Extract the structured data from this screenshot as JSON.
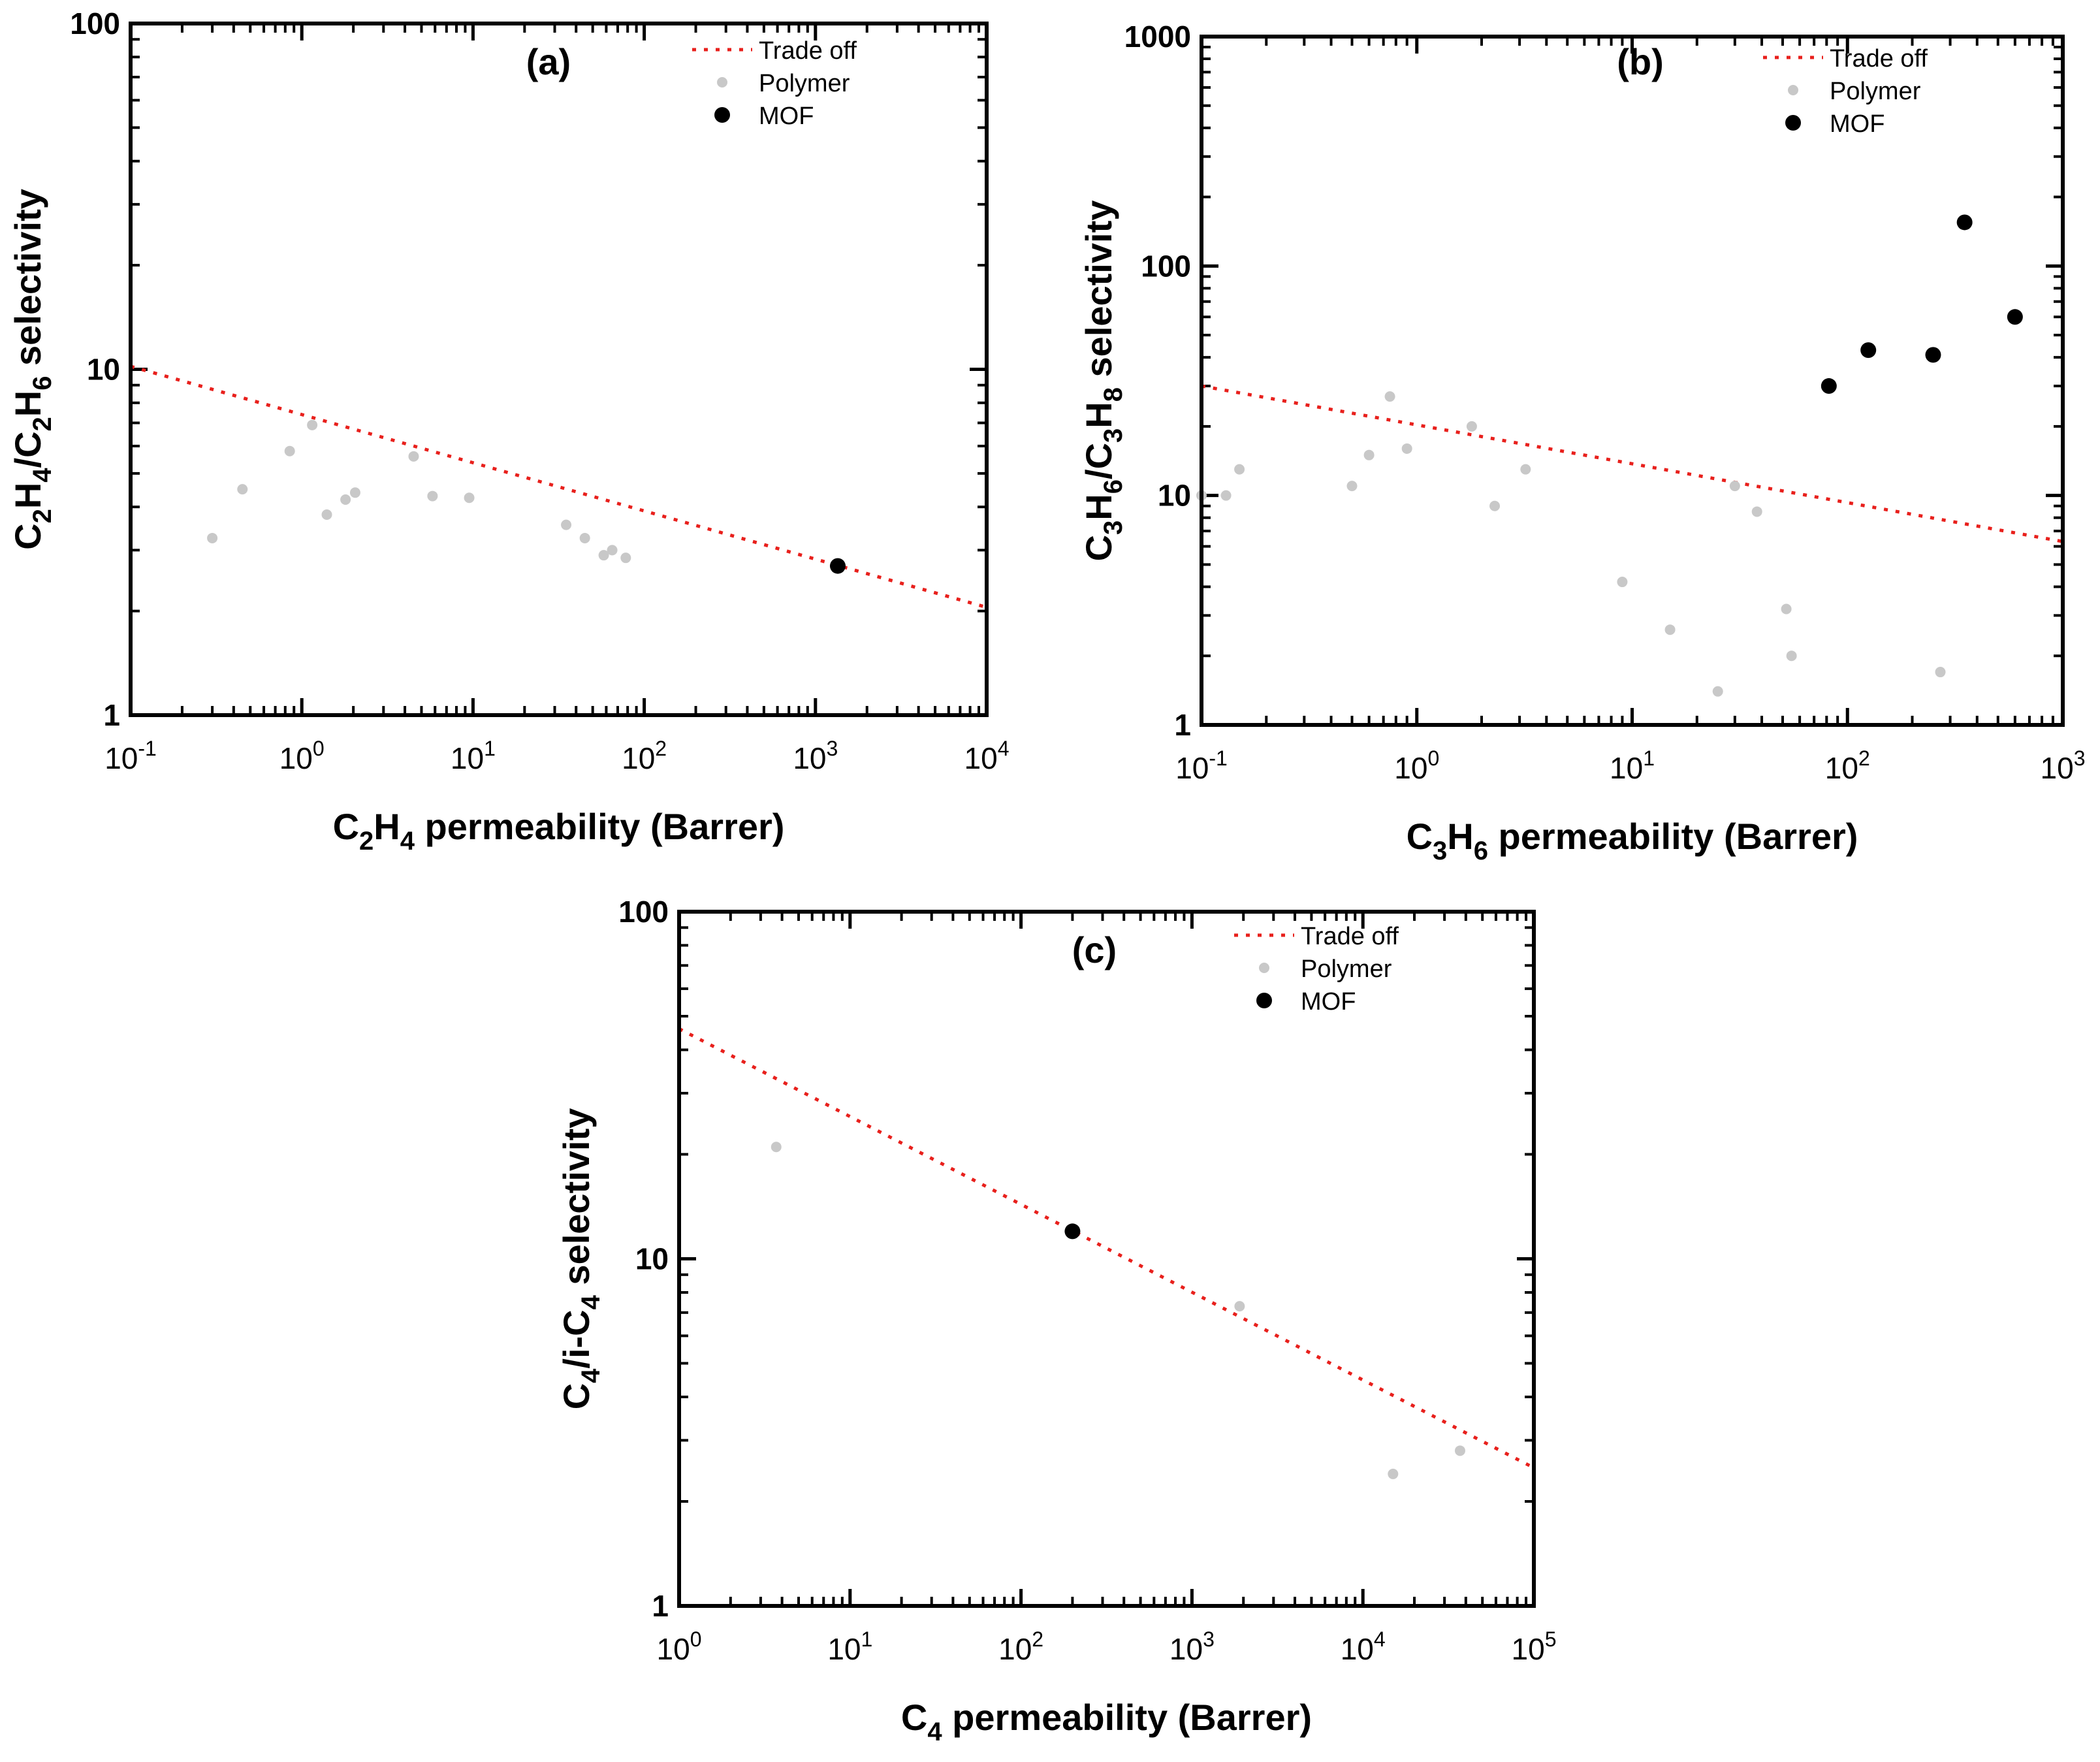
{
  "chart_data": [
    {
      "type": "scatter",
      "panel_label": "(a)",
      "x_scale": "log",
      "y_scale": "log",
      "xlim": [
        0.1,
        10000
      ],
      "ylim": [
        1,
        100
      ],
      "x_ticks": [
        {
          "value": 0.1,
          "base": "10",
          "exp": "-1"
        },
        {
          "value": 1,
          "base": "10",
          "exp": "0"
        },
        {
          "value": 10,
          "base": "10",
          "exp": "1"
        },
        {
          "value": 100,
          "base": "10",
          "exp": "2"
        },
        {
          "value": 1000,
          "base": "10",
          "exp": "3"
        },
        {
          "value": 10000,
          "base": "10",
          "exp": "4"
        }
      ],
      "y_ticks": [
        {
          "value": 1,
          "label": "1"
        },
        {
          "value": 10,
          "label": "10"
        },
        {
          "value": 100,
          "label": "100"
        }
      ],
      "xlabel": [
        {
          "t": "C",
          "s": "n"
        },
        {
          "t": "2",
          "s": "sub"
        },
        {
          "t": "H",
          "s": "n"
        },
        {
          "t": "4",
          "s": "sub"
        },
        {
          "t": " permeability (Barrer)",
          "s": "n"
        }
      ],
      "ylabel": [
        {
          "t": "C",
          "s": "n"
        },
        {
          "t": "2",
          "s": "sub"
        },
        {
          "t": "H",
          "s": "n"
        },
        {
          "t": "4",
          "s": "sub"
        },
        {
          "t": "/C",
          "s": "n"
        },
        {
          "t": "2",
          "s": "sub"
        },
        {
          "t": "H",
          "s": "n"
        },
        {
          "t": "6",
          "s": "sub"
        },
        {
          "t": " selectivity",
          "s": "n"
        }
      ],
      "legend": {
        "position": "top-right",
        "trade_off": "Trade off",
        "polymer": "Polymer",
        "mof": "MOF"
      },
      "trade_off_line": {
        "x": [
          0.1,
          10000
        ],
        "y": [
          10.2,
          2.05
        ]
      },
      "series": [
        {
          "name": "Polymer",
          "points": [
            [
              0.3,
              3.25
            ],
            [
              0.45,
              4.5
            ],
            [
              0.85,
              5.8
            ],
            [
              1.15,
              6.9
            ],
            [
              1.4,
              3.8
            ],
            [
              1.8,
              4.2
            ],
            [
              2.05,
              4.4
            ],
            [
              4.5,
              5.6
            ],
            [
              5.8,
              4.3
            ],
            [
              9.5,
              4.25
            ],
            [
              35,
              3.55
            ],
            [
              45,
              3.25
            ],
            [
              58,
              2.9
            ],
            [
              65,
              3.0
            ],
            [
              78,
              2.85
            ]
          ]
        },
        {
          "name": "MOF",
          "points": [
            [
              1350,
              2.7
            ]
          ]
        }
      ]
    },
    {
      "type": "scatter",
      "panel_label": "(b)",
      "x_scale": "log",
      "y_scale": "log",
      "xlim": [
        0.1,
        1000
      ],
      "ylim": [
        1,
        1000
      ],
      "x_ticks": [
        {
          "value": 0.1,
          "base": "10",
          "exp": "-1"
        },
        {
          "value": 1,
          "base": "10",
          "exp": "0"
        },
        {
          "value": 10,
          "base": "10",
          "exp": "1"
        },
        {
          "value": 100,
          "base": "10",
          "exp": "2"
        },
        {
          "value": 1000,
          "base": "10",
          "exp": "3"
        }
      ],
      "y_ticks": [
        {
          "value": 1,
          "label": "1"
        },
        {
          "value": 10,
          "label": "10"
        },
        {
          "value": 100,
          "label": "100"
        },
        {
          "value": 1000,
          "label": "1000"
        }
      ],
      "xlabel": [
        {
          "t": "C",
          "s": "n"
        },
        {
          "t": "3",
          "s": "sub"
        },
        {
          "t": "H",
          "s": "n"
        },
        {
          "t": "6",
          "s": "sub"
        },
        {
          "t": " permeability (Barrer)",
          "s": "n"
        }
      ],
      "ylabel": [
        {
          "t": "C",
          "s": "n"
        },
        {
          "t": "3",
          "s": "sub"
        },
        {
          "t": "H",
          "s": "n"
        },
        {
          "t": "6",
          "s": "sub"
        },
        {
          "t": "/C",
          "s": "n"
        },
        {
          "t": "3",
          "s": "sub"
        },
        {
          "t": "H",
          "s": "n"
        },
        {
          "t": "8",
          "s": "sub"
        },
        {
          "t": " selectivity",
          "s": "n"
        }
      ],
      "legend": {
        "position": "top-right",
        "trade_off": "Trade off",
        "polymer": "Polymer",
        "mof": "MOF"
      },
      "trade_off_line": {
        "x": [
          0.1,
          1000
        ],
        "y": [
          30,
          6.3
        ]
      },
      "series": [
        {
          "name": "Polymer",
          "points": [
            [
              0.1,
              10
            ],
            [
              0.13,
              10
            ],
            [
              0.15,
              13
            ],
            [
              0.5,
              11
            ],
            [
              0.6,
              15
            ],
            [
              0.75,
              27
            ],
            [
              0.9,
              16
            ],
            [
              1.8,
              20
            ],
            [
              2.3,
              9
            ],
            [
              3.2,
              13
            ],
            [
              9,
              4.2
            ],
            [
              15,
              2.6
            ],
            [
              25,
              1.4
            ],
            [
              30,
              11
            ],
            [
              38,
              8.5
            ],
            [
              52,
              3.2
            ],
            [
              55,
              2.0
            ],
            [
              270,
              1.7
            ]
          ]
        },
        {
          "name": "MOF",
          "points": [
            [
              82,
              30
            ],
            [
              125,
              43
            ],
            [
              250,
              41
            ],
            [
              350,
              155
            ],
            [
              600,
              60
            ]
          ]
        }
      ]
    },
    {
      "type": "scatter",
      "panel_label": "(c)",
      "x_scale": "log",
      "y_scale": "log",
      "xlim": [
        1,
        100000
      ],
      "ylim": [
        1,
        100
      ],
      "x_ticks": [
        {
          "value": 1,
          "base": "10",
          "exp": "0"
        },
        {
          "value": 10,
          "base": "10",
          "exp": "1"
        },
        {
          "value": 100,
          "base": "10",
          "exp": "2"
        },
        {
          "value": 1000,
          "base": "10",
          "exp": "3"
        },
        {
          "value": 10000,
          "base": "10",
          "exp": "4"
        },
        {
          "value": 100000,
          "base": "10",
          "exp": "5"
        }
      ],
      "y_ticks": [
        {
          "value": 1,
          "label": "1"
        },
        {
          "value": 10,
          "label": "10"
        },
        {
          "value": 100,
          "label": "100"
        }
      ],
      "xlabel": [
        {
          "t": "C",
          "s": "n"
        },
        {
          "t": "4",
          "s": "sub"
        },
        {
          "t": " permeability (Barrer)",
          "s": "n"
        }
      ],
      "ylabel": [
        {
          "t": "C",
          "s": "n"
        },
        {
          "t": "4",
          "s": "sub"
        },
        {
          "t": "/i-C",
          "s": "n"
        },
        {
          "t": "4",
          "s": "sub"
        },
        {
          "t": " selectivity",
          "s": "n"
        }
      ],
      "legend": {
        "position": "top-right",
        "trade_off": "Trade off",
        "polymer": "Polymer",
        "mof": "MOF"
      },
      "trade_off_line": {
        "x": [
          1,
          100000
        ],
        "y": [
          46,
          2.5
        ]
      },
      "series": [
        {
          "name": "Polymer",
          "points": [
            [
              3.7,
              21
            ],
            [
              1900,
              7.3
            ],
            [
              15000,
              2.4
            ],
            [
              37000,
              2.8
            ]
          ]
        },
        {
          "name": "MOF",
          "points": [
            [
              200,
              12
            ]
          ]
        }
      ]
    }
  ]
}
